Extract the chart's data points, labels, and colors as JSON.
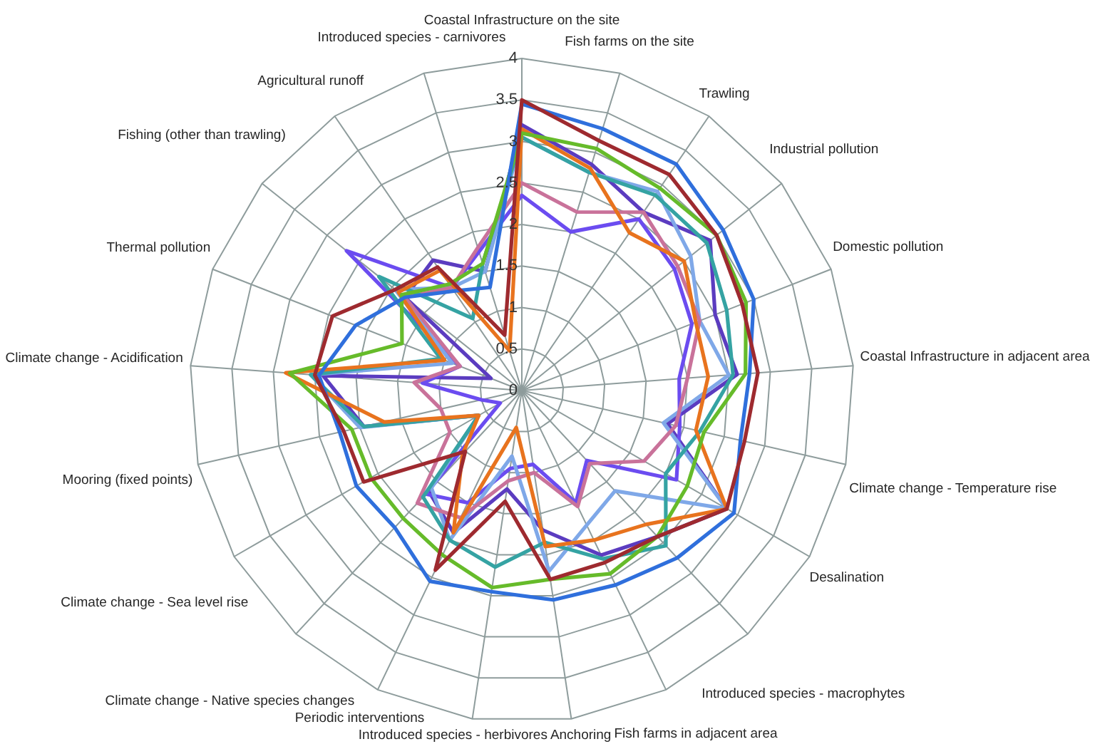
{
  "chart_data": {
    "type": "radar",
    "categories": [
      "Coastal Infrastructure on the site",
      "Fish farms on the site",
      "Trawling",
      "Industrial pollution",
      "Domestic pollution",
      "Coastal Infrastructure in adjacent area",
      "Climate change - Temperature rise",
      "Desalination",
      "Introduced species - macrophytes",
      "Fish farms in adjacent area",
      "Anchoring",
      "Introduced species - herbivores",
      "Periodic interventions",
      "Climate change - Native species changes",
      "Climate change - Sea level rise",
      "Mooring (fixed points)",
      "Climate change - Acidification",
      "Thermal pollution",
      "Fishing (other than trawling)",
      "Agricultural runoff",
      "Introduced species - carnivores"
    ],
    "series": [
      {
        "color": "#9e2a2f",
        "values": [
          3.5,
          3.15,
          3.15,
          3.0,
          2.85,
          2.85,
          2.75,
          2.85,
          2.4,
          2.3,
          2.3,
          1.35,
          2.4,
          1.0,
          2.2,
          2.2,
          2.5,
          2.45,
          1.95,
          1.8,
          0.7
        ]
      },
      {
        "color": "#2f6fdc",
        "values": [
          3.45,
          3.3,
          3.3,
          3.1,
          3.0,
          2.75,
          2.7,
          2.95,
          2.75,
          2.6,
          2.55,
          2.45,
          2.55,
          2.25,
          2.3,
          2.25,
          2.45,
          2.15,
          1.8,
          1.45,
          1.3
        ]
      },
      {
        "color": "#66bb2a",
        "values": [
          3.1,
          3.05,
          2.95,
          3.0,
          2.9,
          2.7,
          2.25,
          2.3,
          2.4,
          2.45,
          2.3,
          2.4,
          2.2,
          2.1,
          2.1,
          2.1,
          2.8,
          1.55,
          1.85,
          1.55,
          1.6
        ]
      },
      {
        "color": "#e8731e",
        "values": [
          3.15,
          2.8,
          2.3,
          2.5,
          2.25,
          2.25,
          2.15,
          2.85,
          2.2,
          2.0,
          1.9,
          0.45,
          1.9,
          1.05,
          0.6,
          1.7,
          2.85,
          1.0,
          1.9,
          1.75,
          0.5
        ]
      },
      {
        "color": "#35a3a3",
        "values": [
          3.05,
          2.75,
          2.85,
          2.85,
          2.65,
          2.55,
          2.2,
          2.0,
          2.55,
          2.25,
          1.85,
          2.15,
          2.0,
          1.75,
          0.6,
          1.95,
          2.55,
          1.05,
          2.2,
          1.05,
          1.6
        ]
      },
      {
        "color": "#c9729a",
        "values": [
          2.5,
          2.25,
          2.6,
          2.4,
          2.3,
          2.0,
          1.9,
          1.7,
          1.2,
          1.55,
          1.0,
          1.1,
          1.7,
          1.85,
          1.0,
          1.0,
          1.3,
          0.8,
          1.8,
          1.5,
          1.8
        ]
      },
      {
        "color": "#7fa8e8",
        "values": [
          3.05,
          2.75,
          2.9,
          2.6,
          2.3,
          2.5,
          1.75,
          2.85,
          1.65,
          1.8,
          2.2,
          0.8,
          2.0,
          1.6,
          0.6,
          2.0,
          2.55,
          0.9,
          1.95,
          1.5,
          1.5
        ]
      },
      {
        "color": "#6b4cf0",
        "values": [
          2.35,
          2.0,
          2.5,
          2.35,
          2.2,
          1.9,
          1.95,
          2.15,
          1.15,
          1.5,
          0.9,
          0.95,
          1.5,
          1.7,
          0.3,
          0.5,
          1.2,
          0.8,
          2.7,
          1.5,
          1.75
        ]
      },
      {
        "color": "#5b3cc0",
        "values": [
          3.2,
          2.85,
          2.6,
          2.9,
          2.5,
          2.6,
          1.8,
          2.85,
          2.4,
          2.2,
          1.7,
          1.2,
          1.9,
          1.65,
          0.6,
          1.95,
          2.4,
          0.4,
          1.8,
          1.9,
          1.5
        ]
      }
    ],
    "ylim": [
      0,
      4
    ],
    "yticks": [
      0,
      0.5,
      1,
      1.5,
      2,
      2.5,
      3,
      3.5,
      4
    ],
    "grid": true
  }
}
